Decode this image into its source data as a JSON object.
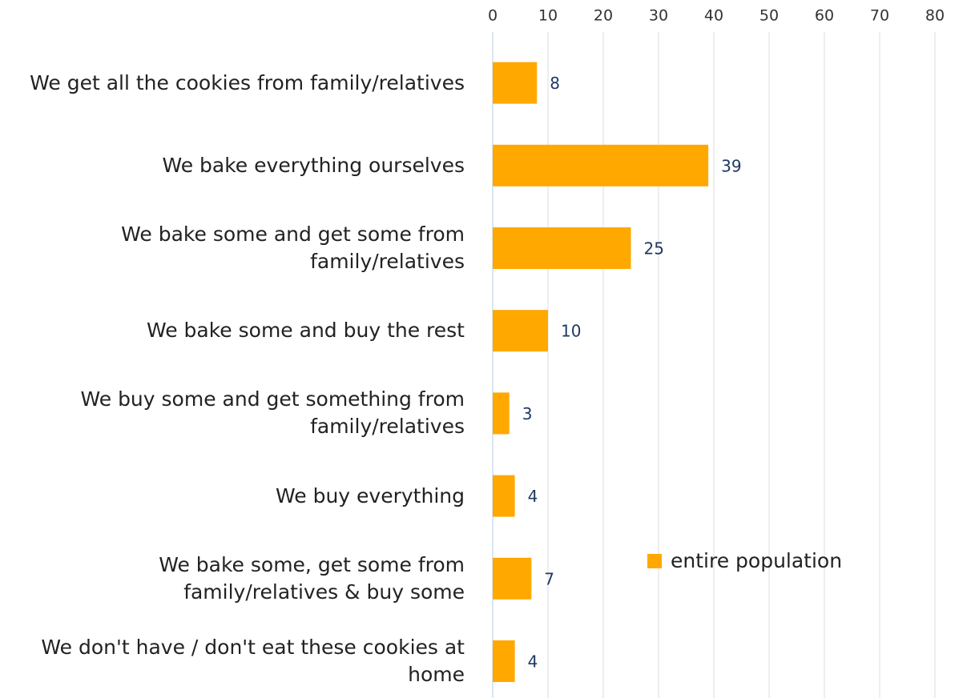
{
  "chart_data": {
    "type": "bar",
    "orientation": "horizontal",
    "categories": [
      "We get all the cookies from family/relatives",
      "We bake everything ourselves",
      "We bake some and get some from family/relatives",
      "We bake some and buy the rest",
      "We buy some and get something from family/relatives",
      "We buy everything",
      "We bake some, get some from family/relatives & buy some",
      "We don't have / don't eat these cookies at home"
    ],
    "series": [
      {
        "name": "entire population",
        "color": "#FFA800",
        "values": [
          8,
          39,
          25,
          10,
          3,
          4,
          7,
          4
        ]
      }
    ],
    "xlim": [
      0,
      80
    ],
    "xticks": [
      0,
      10,
      20,
      30,
      40,
      50,
      60,
      70,
      80
    ],
    "grid": true,
    "legend": "right"
  }
}
